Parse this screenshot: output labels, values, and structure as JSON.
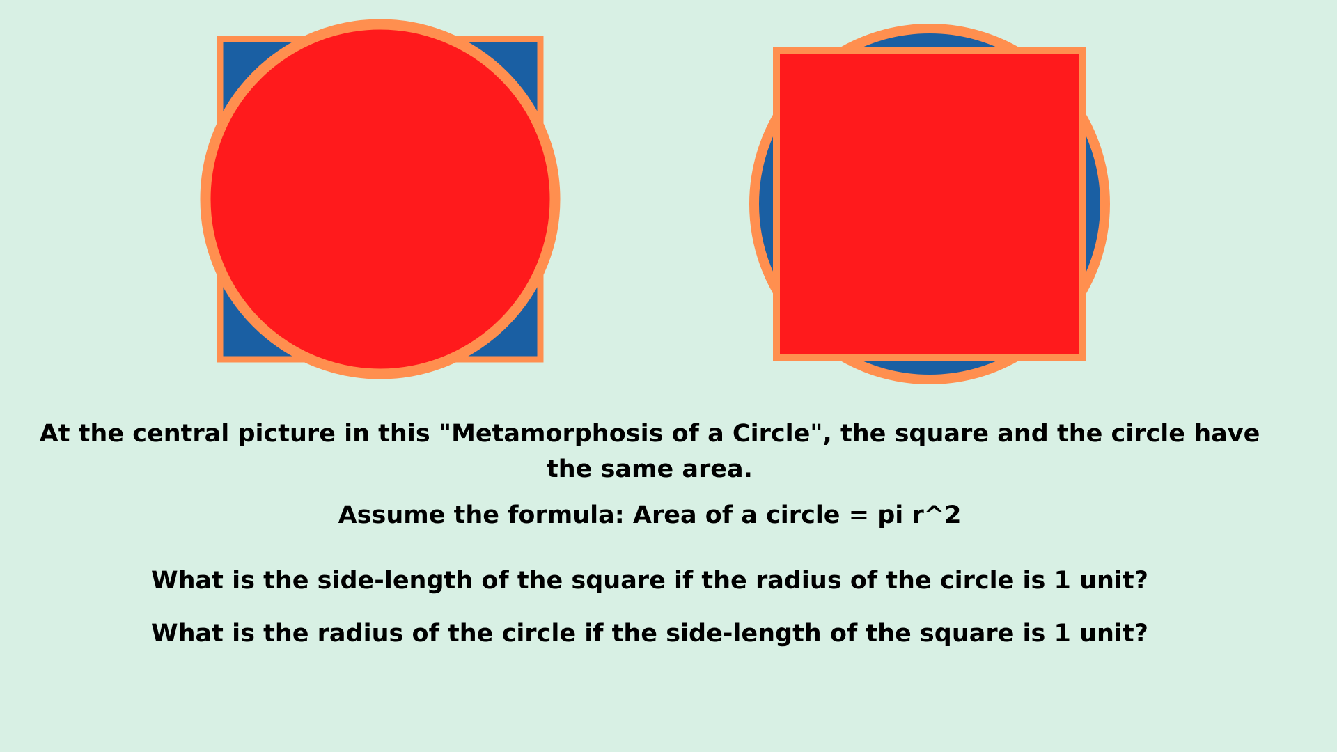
{
  "colors": {
    "background": "#d8f0e4",
    "fill_red": "#ff1a1c",
    "fill_blue": "#1a5fa3",
    "stroke_orange": "#ff8f4f",
    "text": "#000000"
  },
  "figures": [
    {
      "name": "circle-over-square",
      "front": "circle",
      "back": "square"
    },
    {
      "name": "square-over-circle",
      "front": "square",
      "back": "circle"
    }
  ],
  "text": {
    "paragraph": "At the central picture in this \"Metamorphosis of a Circle\", the square and the circle have the same area.",
    "formula": "Assume the formula: Area of a circle = pi r^2",
    "question1": "What is the side-length of the square if the radius of the circle is 1 unit?",
    "question2": "What is the radius of the circle if the side-length of the square is 1 unit?"
  }
}
